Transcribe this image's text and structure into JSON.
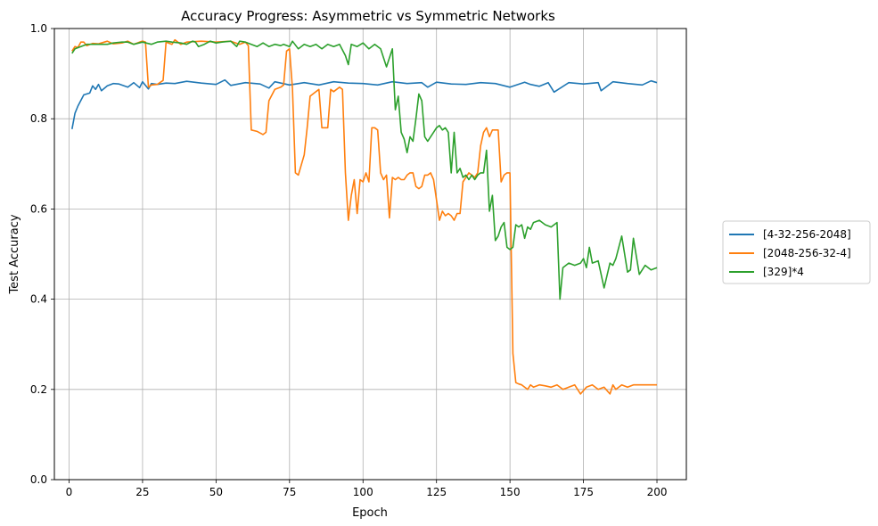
{
  "chart_data": {
    "type": "line",
    "title": "Accuracy Progress: Asymmetric vs Symmetric Networks",
    "xlabel": "Epoch",
    "ylabel": "Test Accuracy",
    "xlim": [
      -5,
      210
    ],
    "ylim": [
      0.0,
      1.0
    ],
    "x_ticks": [
      0,
      25,
      50,
      75,
      100,
      125,
      150,
      175,
      200
    ],
    "x_tick_labels": [
      "0",
      "25",
      "50",
      "75",
      "100",
      "125",
      "150",
      "175",
      "200"
    ],
    "y_ticks": [
      0.0,
      0.2,
      0.4,
      0.6,
      0.8,
      1.0
    ],
    "y_tick_labels": [
      "0.0",
      "0.2",
      "0.4",
      "0.6",
      "0.8",
      "1.0"
    ],
    "grid": true,
    "legend_position": "outside-right",
    "series": [
      {
        "name": "[4-32-256-2048]",
        "color": "#1f77b4",
        "x": [
          1,
          2,
          3,
          5,
          7,
          8,
          9,
          10,
          11,
          13,
          15,
          17,
          20,
          22,
          24,
          25,
          27,
          28,
          30,
          33,
          36,
          40,
          45,
          50,
          53,
          55,
          60,
          65,
          68,
          70,
          75,
          80,
          85,
          90,
          95,
          100,
          105,
          110,
          115,
          120,
          122,
          125,
          130,
          135,
          140,
          145,
          150,
          155,
          157,
          160,
          163,
          165,
          170,
          175,
          180,
          181,
          185,
          190,
          195,
          198,
          200
        ],
        "y": [
          0.777,
          0.812,
          0.828,
          0.853,
          0.857,
          0.873,
          0.865,
          0.876,
          0.862,
          0.873,
          0.878,
          0.877,
          0.87,
          0.88,
          0.869,
          0.882,
          0.866,
          0.878,
          0.876,
          0.879,
          0.878,
          0.883,
          0.879,
          0.876,
          0.886,
          0.874,
          0.88,
          0.877,
          0.868,
          0.882,
          0.875,
          0.88,
          0.875,
          0.882,
          0.879,
          0.878,
          0.875,
          0.882,
          0.878,
          0.88,
          0.87,
          0.881,
          0.877,
          0.876,
          0.88,
          0.878,
          0.87,
          0.881,
          0.876,
          0.872,
          0.88,
          0.859,
          0.88,
          0.877,
          0.88,
          0.862,
          0.882,
          0.878,
          0.875,
          0.884,
          0.88
        ]
      },
      {
        "name": "[2048-256-32-4]",
        "color": "#ff7f0e",
        "x": [
          1,
          2,
          3,
          4,
          5,
          6,
          8,
          10,
          13,
          15,
          18,
          20,
          22,
          24,
          25,
          26,
          27,
          28,
          30,
          32,
          33,
          35,
          36,
          38,
          40,
          45,
          50,
          55,
          58,
          60,
          61,
          62,
          64,
          66,
          67,
          68,
          70,
          72,
          73,
          74,
          75,
          76,
          77,
          78,
          80,
          81,
          82,
          84,
          85,
          86,
          88,
          89,
          90,
          91,
          92,
          93,
          94,
          95,
          96,
          97,
          98,
          99,
          100,
          101,
          102,
          103,
          104,
          105,
          106,
          107,
          108,
          109,
          110,
          111,
          112,
          113,
          114,
          115,
          116,
          117,
          118,
          119,
          120,
          121,
          122,
          123,
          124,
          125,
          126,
          127,
          128,
          129,
          130,
          131,
          132,
          133,
          134,
          135,
          136,
          137,
          138,
          139,
          140,
          141,
          142,
          143,
          144,
          145,
          146,
          147,
          148,
          149,
          150,
          151,
          152,
          153,
          154,
          156,
          157,
          158,
          160,
          162,
          164,
          166,
          168,
          170,
          172,
          174,
          176,
          178,
          180,
          182,
          184,
          185,
          186,
          188,
          190,
          192,
          194,
          196,
          198,
          200
        ],
        "y": [
          0.95,
          0.96,
          0.958,
          0.97,
          0.97,
          0.962,
          0.967,
          0.966,
          0.972,
          0.966,
          0.968,
          0.972,
          0.965,
          0.97,
          0.972,
          0.97,
          0.87,
          0.875,
          0.876,
          0.885,
          0.97,
          0.965,
          0.975,
          0.965,
          0.97,
          0.972,
          0.97,
          0.972,
          0.965,
          0.97,
          0.962,
          0.775,
          0.772,
          0.765,
          0.77,
          0.84,
          0.865,
          0.87,
          0.875,
          0.95,
          0.955,
          0.867,
          0.68,
          0.675,
          0.72,
          0.78,
          0.85,
          0.86,
          0.865,
          0.78,
          0.78,
          0.865,
          0.86,
          0.865,
          0.87,
          0.865,
          0.68,
          0.575,
          0.63,
          0.665,
          0.59,
          0.665,
          0.66,
          0.68,
          0.66,
          0.78,
          0.78,
          0.775,
          0.68,
          0.665,
          0.675,
          0.58,
          0.67,
          0.665,
          0.67,
          0.665,
          0.665,
          0.675,
          0.68,
          0.68,
          0.65,
          0.645,
          0.65,
          0.675,
          0.675,
          0.68,
          0.665,
          0.62,
          0.575,
          0.595,
          0.585,
          0.59,
          0.585,
          0.575,
          0.59,
          0.59,
          0.66,
          0.67,
          0.68,
          0.675,
          0.67,
          0.68,
          0.74,
          0.77,
          0.78,
          0.76,
          0.775,
          0.775,
          0.775,
          0.66,
          0.675,
          0.68,
          0.68,
          0.28,
          0.215,
          0.212,
          0.21,
          0.2,
          0.21,
          0.205,
          0.21,
          0.208,
          0.205,
          0.21,
          0.2,
          0.205,
          0.21,
          0.19,
          0.205,
          0.21,
          0.2,
          0.205,
          0.19,
          0.21,
          0.2,
          0.21,
          0.205,
          0.21,
          0.21,
          0.21,
          0.21,
          0.21
        ]
      },
      {
        "name": "[329]*4",
        "color": "#2ca02c",
        "x": [
          1,
          2,
          4,
          6,
          8,
          10,
          13,
          15,
          18,
          20,
          22,
          25,
          28,
          30,
          33,
          35,
          38,
          40,
          42,
          43,
          44,
          46,
          48,
          50,
          52,
          55,
          57,
          58,
          60,
          62,
          64,
          66,
          68,
          70,
          72,
          73,
          75,
          76,
          78,
          80,
          82,
          84,
          86,
          88,
          90,
          92,
          94,
          95,
          96,
          98,
          100,
          102,
          104,
          106,
          108,
          110,
          111,
          112,
          113,
          114,
          115,
          116,
          117,
          118,
          119,
          120,
          121,
          122,
          123,
          124,
          125,
          126,
          127,
          128,
          129,
          130,
          131,
          132,
          133,
          134,
          135,
          136,
          137,
          138,
          139,
          140,
          141,
          142,
          143,
          144,
          145,
          146,
          147,
          148,
          149,
          150,
          151,
          152,
          153,
          154,
          155,
          156,
          157,
          158,
          160,
          162,
          164,
          166,
          167,
          168,
          170,
          172,
          174,
          175,
          176,
          177,
          178,
          180,
          182,
          184,
          185,
          186,
          188,
          190,
          191,
          192,
          194,
          196,
          198,
          200
        ],
        "y": [
          0.945,
          0.955,
          0.96,
          0.965,
          0.965,
          0.965,
          0.965,
          0.968,
          0.97,
          0.97,
          0.965,
          0.97,
          0.965,
          0.97,
          0.972,
          0.97,
          0.968,
          0.965,
          0.972,
          0.97,
          0.96,
          0.965,
          0.972,
          0.968,
          0.97,
          0.972,
          0.96,
          0.972,
          0.97,
          0.965,
          0.96,
          0.968,
          0.96,
          0.965,
          0.962,
          0.965,
          0.96,
          0.972,
          0.955,
          0.965,
          0.96,
          0.965,
          0.955,
          0.965,
          0.96,
          0.965,
          0.94,
          0.92,
          0.965,
          0.96,
          0.968,
          0.955,
          0.965,
          0.955,
          0.915,
          0.955,
          0.82,
          0.85,
          0.77,
          0.755,
          0.725,
          0.76,
          0.75,
          0.8,
          0.855,
          0.84,
          0.76,
          0.75,
          0.76,
          0.77,
          0.78,
          0.785,
          0.775,
          0.78,
          0.77,
          0.68,
          0.77,
          0.68,
          0.69,
          0.67,
          0.675,
          0.665,
          0.675,
          0.665,
          0.675,
          0.68,
          0.68,
          0.73,
          0.595,
          0.63,
          0.53,
          0.54,
          0.56,
          0.57,
          0.515,
          0.51,
          0.515,
          0.565,
          0.56,
          0.565,
          0.535,
          0.56,
          0.555,
          0.57,
          0.575,
          0.565,
          0.56,
          0.57,
          0.4,
          0.47,
          0.48,
          0.475,
          0.48,
          0.49,
          0.47,
          0.515,
          0.48,
          0.485,
          0.425,
          0.48,
          0.475,
          0.49,
          0.54,
          0.46,
          0.465,
          0.535,
          0.455,
          0.475,
          0.465,
          0.47
        ]
      }
    ]
  }
}
